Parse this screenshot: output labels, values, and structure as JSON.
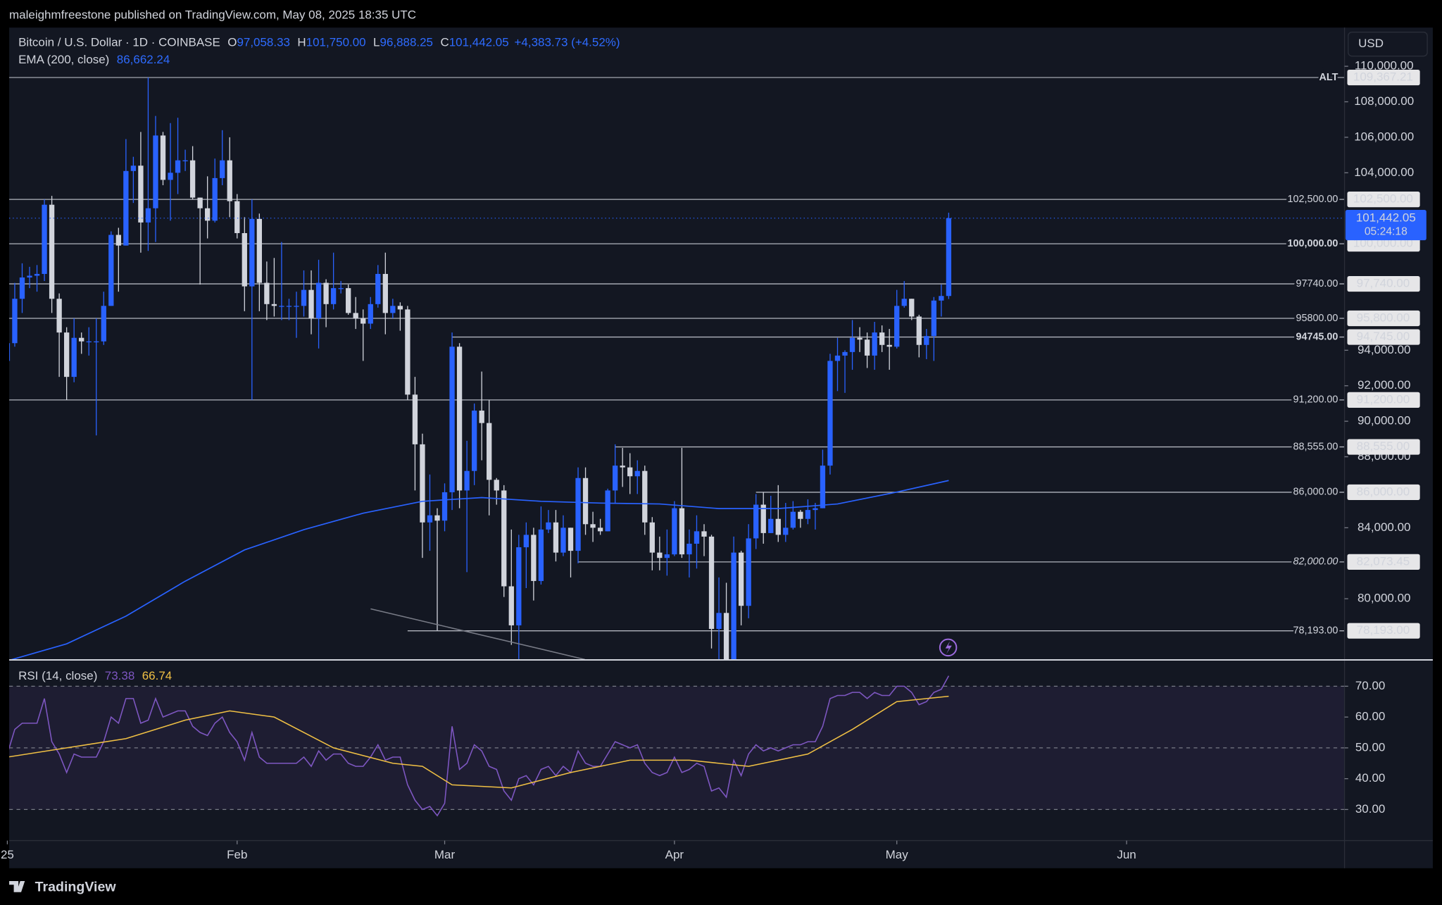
{
  "header": {
    "publisher": "maleighmfreestone published on TradingView.com, May 08, 2025 18:35 UTC",
    "brand": "TradingView",
    "currency": "USD"
  },
  "chart_data": [
    {
      "type": "candlestick",
      "title": "Bitcoin / U.S. Dollar · 1D · COINBASE",
      "ohlc_legend": [
        {
          "key": "O",
          "label": "97,058.33"
        },
        {
          "key": "H",
          "label": "101,750.00"
        },
        {
          "key": "L",
          "label": "96,888.25"
        },
        {
          "key": "C",
          "label": "101,442.05"
        }
      ],
      "change_label": "+4,383.73 (+4.52%)",
      "up_color": "#2962ff",
      "down_color": "#d1d4dc",
      "legend_color": "#2e6bff",
      "open": [
        93400,
        94400,
        96900,
        98100,
        98200,
        98300,
        102200,
        96900,
        95000,
        92500,
        94700,
        94500,
        94500,
        94500,
        96500,
        100500,
        99900,
        104100,
        104400,
        101200,
        102000,
        106100,
        103600,
        104000,
        104700,
        104700,
        102600,
        102000,
        101300,
        103700,
        104700,
        102400,
        100600,
        97600,
        101400,
        97800,
        96600,
        96500,
        96500,
        96500,
        96500,
        97400,
        95800,
        97800,
        96600,
        97500,
        97500,
        96100,
        95800,
        95500,
        96600,
        98300,
        96100,
        96500,
        96300,
        91500,
        88700,
        84300,
        84700,
        84400,
        86000,
        94200,
        86100,
        87200,
        90600,
        89900,
        86700,
        86100,
        80700,
        78500,
        82900,
        83600,
        81000,
        83900,
        84300,
        82600,
        84000,
        82700,
        86800,
        84200,
        84000,
        83800,
        86100,
        87500,
        87400,
        86900,
        87200,
        84300,
        82600,
        82300,
        82500,
        85100,
        82500,
        83100,
        83800,
        83500,
        78300,
        79200,
        76300,
        82600,
        79600,
        83400,
        85300,
        83700,
        84500,
        83600,
        84000,
        84900,
        84500,
        85000,
        85100,
        87500,
        93400,
        93700,
        93900,
        94700,
        94600,
        93700,
        95000,
        94300,
        94200,
        96500,
        96900,
        95900,
        94300,
        94800,
        96800,
        97058.33
      ],
      "high": [
        94900,
        97800,
        98900,
        98700,
        98800,
        102500,
        102700,
        97200,
        95300,
        95800,
        95000,
        95300,
        95800,
        97300,
        100700,
        100900,
        105900,
        104900,
        106300,
        109367.21,
        107200,
        106300,
        106800,
        107100,
        105300,
        105500,
        102600,
        103800,
        104800,
        106400,
        106000,
        102800,
        101500,
        102500,
        101700,
        99000,
        99200,
        100100,
        96900,
        97300,
        98500,
        98500,
        99100,
        98000,
        99500,
        97900,
        97700,
        97000,
        96300,
        97000,
        98800,
        99500,
        96900,
        96700,
        96500,
        92500,
        89300,
        87000,
        85100,
        86500,
        95000,
        94400,
        88900,
        91000,
        92800,
        91200,
        86800,
        86400,
        83900,
        83600,
        84300,
        84000,
        85200,
        85000,
        85000,
        84700,
        84000,
        87400,
        87400,
        84900,
        84500,
        86200,
        88700,
        88500,
        88200,
        87800,
        87500,
        84600,
        83500,
        83900,
        85500,
        88500,
        83900,
        84700,
        84200,
        83600,
        81200,
        80900,
        83500,
        82700,
        84200,
        85900,
        86000,
        85800,
        86400,
        85400,
        85500,
        85000,
        85600,
        85400,
        88400,
        93800,
        94700,
        94000,
        95700,
        95300,
        95000,
        95600,
        95400,
        95200,
        97400,
        97900,
        96900,
        96000,
        95200,
        97000,
        97700,
        101750
      ],
      "low": [
        92800,
        94200,
        96100,
        97500,
        97300,
        97900,
        96100,
        92500,
        91200,
        92200,
        93800,
        93700,
        89200,
        94300,
        96500,
        97300,
        99900,
        102300,
        99500,
        99600,
        100100,
        103300,
        101300,
        102800,
        104100,
        102500,
        97700,
        100300,
        101200,
        103300,
        101500,
        100300,
        96200,
        91200,
        96200,
        95700,
        95900,
        95700,
        95700,
        94700,
        95900,
        94900,
        94100,
        95300,
        96300,
        97200,
        96000,
        95200,
        93400,
        95200,
        96400,
        94900,
        95800,
        95100,
        91200,
        86100,
        82300,
        82700,
        78200,
        83800,
        85000,
        85100,
        81500,
        86400,
        87800,
        84700,
        85300,
        80100,
        77400,
        76600,
        80600,
        79900,
        80800,
        83700,
        82100,
        82400,
        81200,
        82000,
        83600,
        83200,
        83600,
        83800,
        85400,
        86300,
        85900,
        85900,
        83600,
        81600,
        81600,
        81300,
        82400,
        82300,
        81200,
        81700,
        82400,
        77200,
        74500,
        76200,
        74600,
        78500,
        78900,
        82800,
        83100,
        83700,
        83200,
        83200,
        83900,
        84000,
        84200,
        83900,
        85100,
        87000,
        91700,
        91600,
        92900,
        93900,
        93000,
        92900,
        93900,
        92900,
        94100,
        96400,
        95700,
        93600,
        93500,
        93400,
        95900,
        96888.25
      ],
      "close": [
        94400,
        96900,
        98100,
        98200,
        98300,
        102200,
        96900,
        95000,
        92500,
        94700,
        94500,
        94500,
        94500,
        96500,
        100500,
        99900,
        104100,
        104400,
        101200,
        102000,
        106100,
        103600,
        104000,
        104700,
        104700,
        102600,
        102000,
        101300,
        103700,
        104700,
        102400,
        100600,
        97600,
        101400,
        97800,
        96600,
        96500,
        96500,
        96500,
        96500,
        97400,
        95800,
        97800,
        96600,
        97500,
        97500,
        96100,
        95800,
        95500,
        96600,
        98300,
        96100,
        96500,
        96300,
        91500,
        88700,
        84300,
        84700,
        84400,
        86000,
        94200,
        86100,
        87200,
        90600,
        89900,
        86700,
        86100,
        80700,
        78500,
        82900,
        83600,
        81000,
        83900,
        84300,
        82600,
        84000,
        82700,
        86800,
        84200,
        84000,
        83800,
        86100,
        87500,
        87400,
        86900,
        87200,
        84300,
        82600,
        82300,
        82500,
        85100,
        82500,
        83100,
        83800,
        83500,
        78300,
        79200,
        76300,
        82600,
        79600,
        83400,
        85300,
        83700,
        84500,
        83600,
        84000,
        84900,
        84500,
        85000,
        85100,
        87500,
        93400,
        93700,
        93900,
        94700,
        94600,
        93700,
        95000,
        94300,
        94200,
        96500,
        96900,
        95900,
        94300,
        94800,
        96800,
        97058.32,
        101442.05
      ],
      "last_price_label": "101,442.05",
      "countdown": "05:24:18",
      "overlays": [
        {
          "name": "EMA (200, close)",
          "value_label": "86,662.24",
          "color": "#2962ff",
          "x": [
            0,
            8,
            16,
            24,
            32,
            40,
            48,
            56,
            64,
            72,
            80,
            88,
            96,
            104,
            112,
            120,
            127
          ],
          "values": [
            76500,
            77460,
            79020,
            80990,
            82750,
            83890,
            84820,
            85490,
            85700,
            85490,
            85390,
            85340,
            85080,
            85080,
            85340,
            86010,
            86662.24
          ]
        }
      ],
      "levels": [
        {
          "value": 109367.21,
          "tag": "ALT",
          "axis_label": "109,367.21",
          "x0": 0
        },
        {
          "value": 102500,
          "label": "102,500.00",
          "axis_label": "102,500.00",
          "x0": 0
        },
        {
          "value": 100000,
          "label": "100,000.00",
          "axis_label": "100,000.00",
          "x0": 0,
          "bold": true
        },
        {
          "value": 97740,
          "label": "97740.00",
          "axis_label": "97,740.00",
          "x0": 0
        },
        {
          "value": 95800,
          "label": "95800.00",
          "axis_label": "95,800.00",
          "x0": 0
        },
        {
          "value": 94745,
          "label": "94745.00",
          "axis_label": "94,745.00",
          "x0": 60,
          "bold": true
        },
        {
          "value": 91200,
          "label": "91,200.00",
          "axis_label": "91,200.00",
          "x0": 0
        },
        {
          "value": 88555,
          "label": "88,555.00",
          "axis_label": "88,555.00",
          "x0": 82
        },
        {
          "value": 86000,
          "label": "86,000.00",
          "axis_label": "86,000.00",
          "x0": 101
        },
        {
          "value": 82073.45,
          "note": "82,000.00",
          "axis_label": "82,073.45",
          "x0": 77,
          "italic": true
        },
        {
          "value": 78193,
          "label": "78,193.00",
          "axis_label": "78,193.00",
          "x0": 54
        }
      ],
      "ylim": [
        76580,
        112180
      ],
      "yticks": [
        {
          "value": 80000,
          "label": "80,000.00"
        },
        {
          "value": 84000,
          "label": "84,000.00"
        },
        {
          "value": 88000,
          "label": "88,000.00"
        },
        {
          "value": 90000,
          "label": "90,000.00"
        },
        {
          "value": 92000,
          "label": "92,000.00"
        },
        {
          "value": 94000,
          "label": "94,000.00"
        },
        {
          "value": 104000,
          "label": "104,000.00"
        },
        {
          "value": 106000,
          "label": "106,000.00"
        },
        {
          "value": 108000,
          "label": "108,000.00"
        },
        {
          "value": 110000,
          "label": "110,000.00"
        }
      ],
      "xlim": [
        0.25,
        180.4
      ]
    },
    {
      "type": "line",
      "title": "RSI (14, close)",
      "series": [
        {
          "color": "#7e57c2",
          "value_label": "73.38",
          "values": [
            48,
            56,
            58,
            58,
            58,
            66,
            52,
            48,
            42,
            48,
            47,
            47,
            47,
            52,
            60,
            58,
            66,
            66,
            58,
            59,
            66,
            60,
            61,
            62,
            62,
            57,
            55,
            54,
            58,
            60,
            55,
            52,
            46,
            55,
            47,
            45,
            45,
            45,
            45,
            45,
            47,
            44,
            49,
            46,
            48,
            48,
            45,
            44,
            44,
            47,
            51,
            46,
            47,
            47,
            38,
            33,
            30,
            31,
            28,
            32,
            57,
            43,
            45,
            51,
            49,
            44,
            43,
            36,
            33,
            40,
            41,
            38,
            43,
            44,
            41,
            44,
            42,
            49,
            45,
            44,
            44,
            48,
            52,
            51,
            50,
            51,
            45,
            42,
            41,
            42,
            47,
            42,
            43,
            45,
            44,
            36,
            37,
            34,
            46,
            41,
            48,
            51,
            49,
            50,
            49,
            50,
            51,
            51,
            52,
            52,
            57,
            66,
            67,
            67,
            68,
            68,
            66,
            68,
            67,
            67,
            70,
            70,
            68,
            64,
            65,
            68,
            69,
            73.38
          ]
        },
        {
          "color": "#f0c044",
          "value_label": "66.74",
          "x": [
            0,
            8,
            16,
            24,
            30,
            36,
            44,
            52,
            56,
            60,
            68,
            76,
            84,
            92,
            100,
            108,
            114,
            120,
            127
          ],
          "values": [
            47,
            50,
            53,
            59,
            62,
            60,
            50,
            45,
            44,
            38,
            37,
            42,
            46,
            46,
            44,
            48,
            56,
            65,
            66.74
          ]
        }
      ],
      "band": [
        30,
        70
      ],
      "band_color": "#7e57c2",
      "dashed_levels": [
        30,
        50,
        70
      ],
      "ylim": [
        19.9,
        78.7
      ],
      "yticks": [
        {
          "value": 30,
          "label": "30.00"
        },
        {
          "value": 40,
          "label": "40.00"
        },
        {
          "value": 50,
          "label": "50.00"
        },
        {
          "value": 60,
          "label": "60.00"
        },
        {
          "value": 70,
          "label": "70.00"
        }
      ],
      "xlim": [
        0.25,
        180.4
      ],
      "xticks": [
        {
          "value": 0,
          "label": "25"
        },
        {
          "value": 31,
          "label": "Feb"
        },
        {
          "value": 59,
          "label": "Mar"
        },
        {
          "value": 90,
          "label": "Apr"
        },
        {
          "value": 120,
          "label": "May"
        },
        {
          "value": 151,
          "label": "Jun"
        }
      ]
    }
  ]
}
